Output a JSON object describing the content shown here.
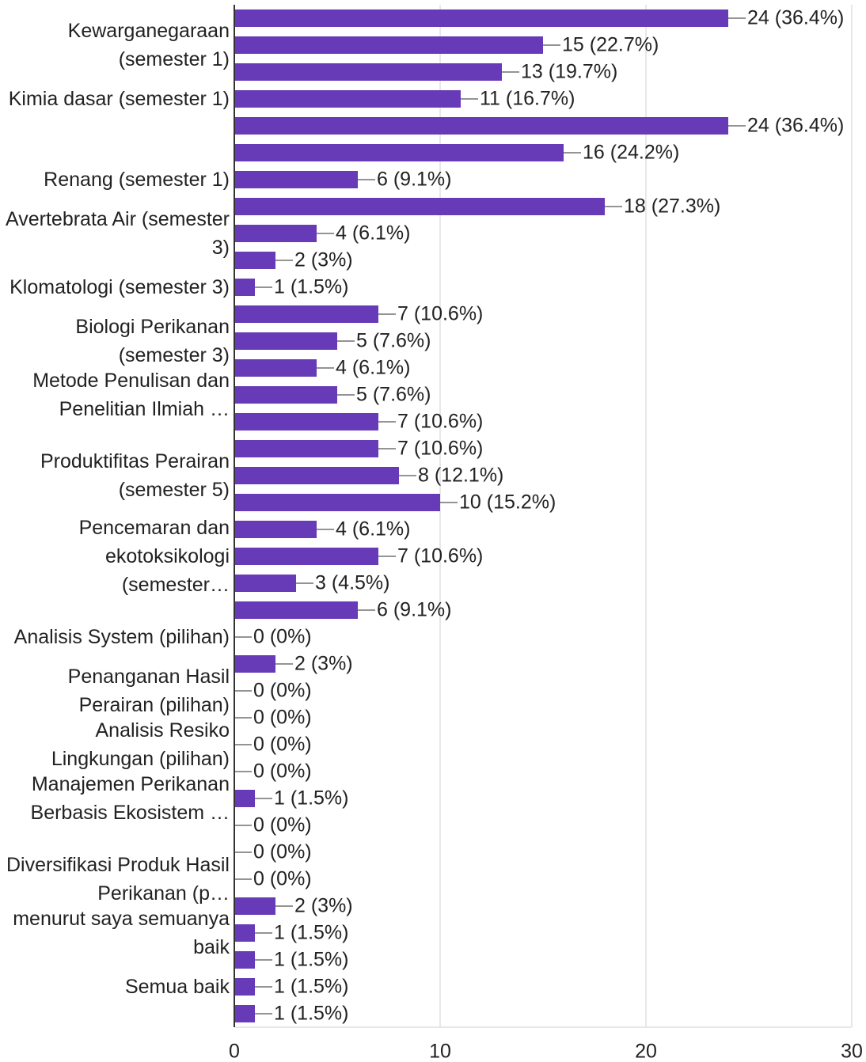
{
  "chart_data": {
    "type": "bar",
    "orientation": "horizontal",
    "color": "#673ab7",
    "grid": true,
    "categories": [
      null,
      "Kewarganegaraan (semester 1)",
      null,
      "Kimia dasar (semester 1)",
      null,
      null,
      "Renang (semester 1)",
      null,
      "Avertebrata Air (semester 3)",
      null,
      "Klomatologi (semester 3)",
      null,
      "Biologi Perikanan (semester 3)",
      null,
      "Metode Penulisan dan Penelitian Ilmiah …",
      null,
      null,
      "Produktifitas Perairan (semester 5)",
      null,
      null,
      "Pencemaran dan ekotoksikologi (semester…",
      null,
      null,
      "Analisis System (pilihan)",
      null,
      "Penanganan Hasil Perairan (pilihan)",
      null,
      "Analisis Resiko Lingkungan (pilihan)",
      null,
      "Manajemen Perikanan Berbasis Ekosistem …",
      null,
      null,
      "Diversifikasi Produk Hasil Perikanan (p…",
      null,
      "menurut saya semuanya baik",
      null,
      "Semua baik",
      null
    ],
    "values": [
      24,
      15,
      13,
      11,
      24,
      16,
      6,
      18,
      4,
      2,
      1,
      7,
      5,
      4,
      5,
      7,
      7,
      8,
      10,
      4,
      7,
      3,
      6,
      0,
      2,
      0,
      0,
      0,
      0,
      1,
      0,
      0,
      0,
      2,
      1,
      1,
      1,
      1
    ],
    "value_labels": [
      "24 (36.4%)",
      "15 (22.7%)",
      "13 (19.7%)",
      "11 (16.7%)",
      "24 (36.4%)",
      "16 (24.2%)",
      "6 (9.1%)",
      "18 (27.3%)",
      "4 (6.1%)",
      "2 (3%)",
      "1 (1.5%)",
      "7 (10.6%)",
      "5 (7.6%)",
      "4 (6.1%)",
      "5 (7.6%)",
      "7 (10.6%)",
      "7 (10.6%)",
      "8 (12.1%)",
      "10 (15.2%)",
      "4 (6.1%)",
      "7 (10.6%)",
      "3 (4.5%)",
      "6 (9.1%)",
      "0 (0%)",
      "2 (3%)",
      "0 (0%)",
      "0 (0%)",
      "0 (0%)",
      "0 (0%)",
      "1 (1.5%)",
      "0 (0%)",
      "0 (0%)",
      "0 (0%)",
      "2 (3%)",
      "1 (1.5%)",
      "1 (1.5%)",
      "1 (1.5%)",
      "1 (1.5%)"
    ],
    "xlim": [
      0,
      30
    ],
    "xticks": [
      0,
      10,
      20,
      30
    ]
  }
}
